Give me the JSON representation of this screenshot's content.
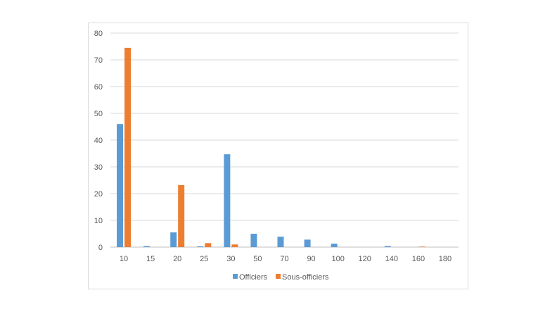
{
  "chart_data": {
    "type": "bar",
    "title": "",
    "xlabel": "",
    "ylabel": "",
    "ylim": [
      0,
      80
    ],
    "yticks": [
      0,
      10,
      20,
      30,
      40,
      50,
      60,
      70,
      80
    ],
    "grid": true,
    "legend_position": "bottom",
    "categories": [
      "10",
      "15",
      "20",
      "25",
      "30",
      "50",
      "70",
      "90",
      "100",
      "120",
      "140",
      "160",
      "180"
    ],
    "series": [
      {
        "name": "Officiers",
        "color": "#5b9bd5",
        "values": [
          46,
          0.4,
          5.5,
          0.3,
          34.7,
          5,
          3.9,
          2.8,
          1.3,
          0,
          0.4,
          0,
          0
        ]
      },
      {
        "name": "Sous-officiers",
        "color": "#ed7d31",
        "values": [
          74.5,
          0,
          23.2,
          1.5,
          1,
          0,
          0,
          0,
          0,
          0,
          0,
          0.2,
          0
        ]
      }
    ]
  }
}
